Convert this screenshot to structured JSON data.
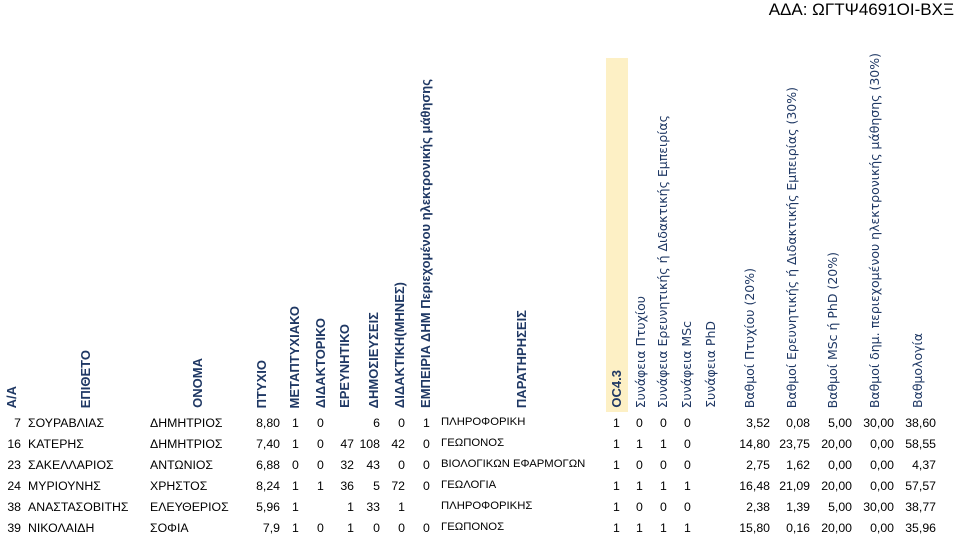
{
  "ada_code": "ΑΔΑ: ΩΓΤΨ4691ΟΙ-ΒΧΞ",
  "headers": {
    "aa": "Α/Α",
    "eponymo": "ΕΠΙΘΕΤΟ",
    "onoma": "ΟΝΟΜΑ",
    "ptyxio": "ΠΤΥΧΙΟ",
    "metaptyxiako": "ΜΕΤΑΠΤΥΧΙΑΚΟ",
    "didaktoriko": "ΔΙΔΑΚΤΟΡΙΚΟ",
    "ereunhtiko": "ΕΡΕΥΝΗΤΙΚΟ",
    "dhmosieuseis": "ΔΗΜΟΣΙΕΥΣΕΙΣ",
    "didaktikh": "ΔΙΔΑΚΤΙΚΗ(ΜΗΝΕΣ)",
    "empeiria": "ΕΜΠΕΙΡΙΑ ΔΗΜ Περιεχομένου ηλεκτρονικής μάθησης",
    "paratiriseis": "ΠΑΡΑΤΗΡΗΣΕΙΣ",
    "oc": "OC4.3",
    "syn_ptyxiou": "Συνάφεια Πτυχίου",
    "syn_empeirias": "Συνάφεια Ερευνητικής ή Διδακτικής Εμπειρίας",
    "syn_msc": "Συνάφεια MSc",
    "syn_phd": "Συνάφεια PhD",
    "vathmoi_ptyxiou": "Βαθμοί Πτυχίου (20%)",
    "vathmoi_empeirias": "Βαθμοί Ερευνητικής ή Διδακτικής Εμπειρίας (30%)",
    "vathmoi_msc_phd": "Βαθμοί MSc ή PhD (20%)",
    "vathmoi_dhm": "Βαθμοί δημ. περιεχομένου ηλεκτρονικής μάθησης (30%)",
    "vathmologia": "Βαθμολογία"
  },
  "rows": [
    {
      "aa": "7",
      "eponymo": "ΣΟΥΡΑΒΛΙΑΣ",
      "onoma": "ΔΗΜΗΤΡΙΟΣ",
      "ptyxio": "8,80",
      "metapt": "1",
      "didakt": "0",
      "ereun": "",
      "dhmos": "6",
      "didaktikh": "0",
      "empeiria": "1",
      "parat": "ΠΛΗΡΟΦΟΡΙΚΗ",
      "oc": "",
      "s1": "1",
      "s2": "0",
      "s3": "0",
      "s4": "0",
      "v1": "3,52",
      "v2": "0,08",
      "v3": "5,00",
      "v4": "30,00",
      "total": "38,60"
    },
    {
      "aa": "16",
      "eponymo": "ΚΑΤΕΡΗΣ",
      "onoma": "ΔΗΜΗΤΡΙΟΣ",
      "ptyxio": "7,40",
      "metapt": "1",
      "didakt": "0",
      "ereun": "47",
      "dhmos": "108",
      "didaktikh": "42",
      "empeiria": "0",
      "parat": "ΓΕΩΠΟΝΟΣ",
      "oc": "",
      "s1": "1",
      "s2": "1",
      "s3": "1",
      "s4": "0",
      "v1": "14,80",
      "v2": "23,75",
      "v3": "20,00",
      "v4": "0,00",
      "total": "58,55"
    },
    {
      "aa": "23",
      "eponymo": "ΣΑΚΕΛΛΑΡΙΟΣ",
      "onoma": "ΑΝΤΩΝΙΟΣ",
      "ptyxio": "6,88",
      "metapt": "0",
      "didakt": "0",
      "ereun": "32",
      "dhmos": "43",
      "didaktikh": "0",
      "empeiria": "0",
      "parat": "ΒΙΟΛΟΓΙΚΩΝ ΕΦΑΡΜΟΓΩΝ",
      "oc": "",
      "s1": "1",
      "s2": "0",
      "s3": "0",
      "s4": "0",
      "v1": "2,75",
      "v2": "1,62",
      "v3": "0,00",
      "v4": "0,00",
      "total": "4,37"
    },
    {
      "aa": "24",
      "eponymo": "ΜΥΡΙΟΥΝΗΣ",
      "onoma": "ΧΡΗΣΤΟΣ",
      "ptyxio": "8,24",
      "metapt": "1",
      "didakt": "1",
      "ereun": "36",
      "dhmos": "5",
      "didaktikh": "72",
      "empeiria": "0",
      "parat": "ΓΕΩΛΟΓΙΑ",
      "oc": "",
      "s1": "1",
      "s2": "1",
      "s3": "1",
      "s4": "1",
      "v1": "16,48",
      "v2": "21,09",
      "v3": "20,00",
      "v4": "0,00",
      "total": "57,57"
    },
    {
      "aa": "38",
      "eponymo": "ΑΝΑΣΤΑΣΟΒΙΤΗΣ",
      "onoma": "ΕΛΕΥΘΕΡΙΟΣ",
      "ptyxio": "5,96",
      "metapt": "1",
      "didakt": "",
      "ereun": "1",
      "dhmos": "33",
      "didaktikh": "1",
      "empeiria": "",
      "parat": "ΠΛΗΡΟΦΟΡΙΚΗΣ",
      "oc": "",
      "s1": "1",
      "s2": "0",
      "s3": "0",
      "s4": "0",
      "v1": "2,38",
      "v2": "1,39",
      "v3": "5,00",
      "v4": "30,00",
      "total": "38,77"
    },
    {
      "aa": "39",
      "eponymo": "ΝΙΚΟΛΑΙΔΗ",
      "onoma": "ΣΟΦΙΑ",
      "ptyxio": "7,9",
      "metapt": "1",
      "didakt": "0",
      "ereun": "1",
      "dhmos": "0",
      "didaktikh": "0",
      "empeiria": "0",
      "parat": "ΓΕΩΠΟΝΟΣ",
      "oc": "",
      "s1": "1",
      "s2": "1",
      "s3": "1",
      "s4": "1",
      "v1": "15,80",
      "v2": "0,16",
      "v3": "20,00",
      "v4": "0,00",
      "total": "35,96"
    }
  ]
}
